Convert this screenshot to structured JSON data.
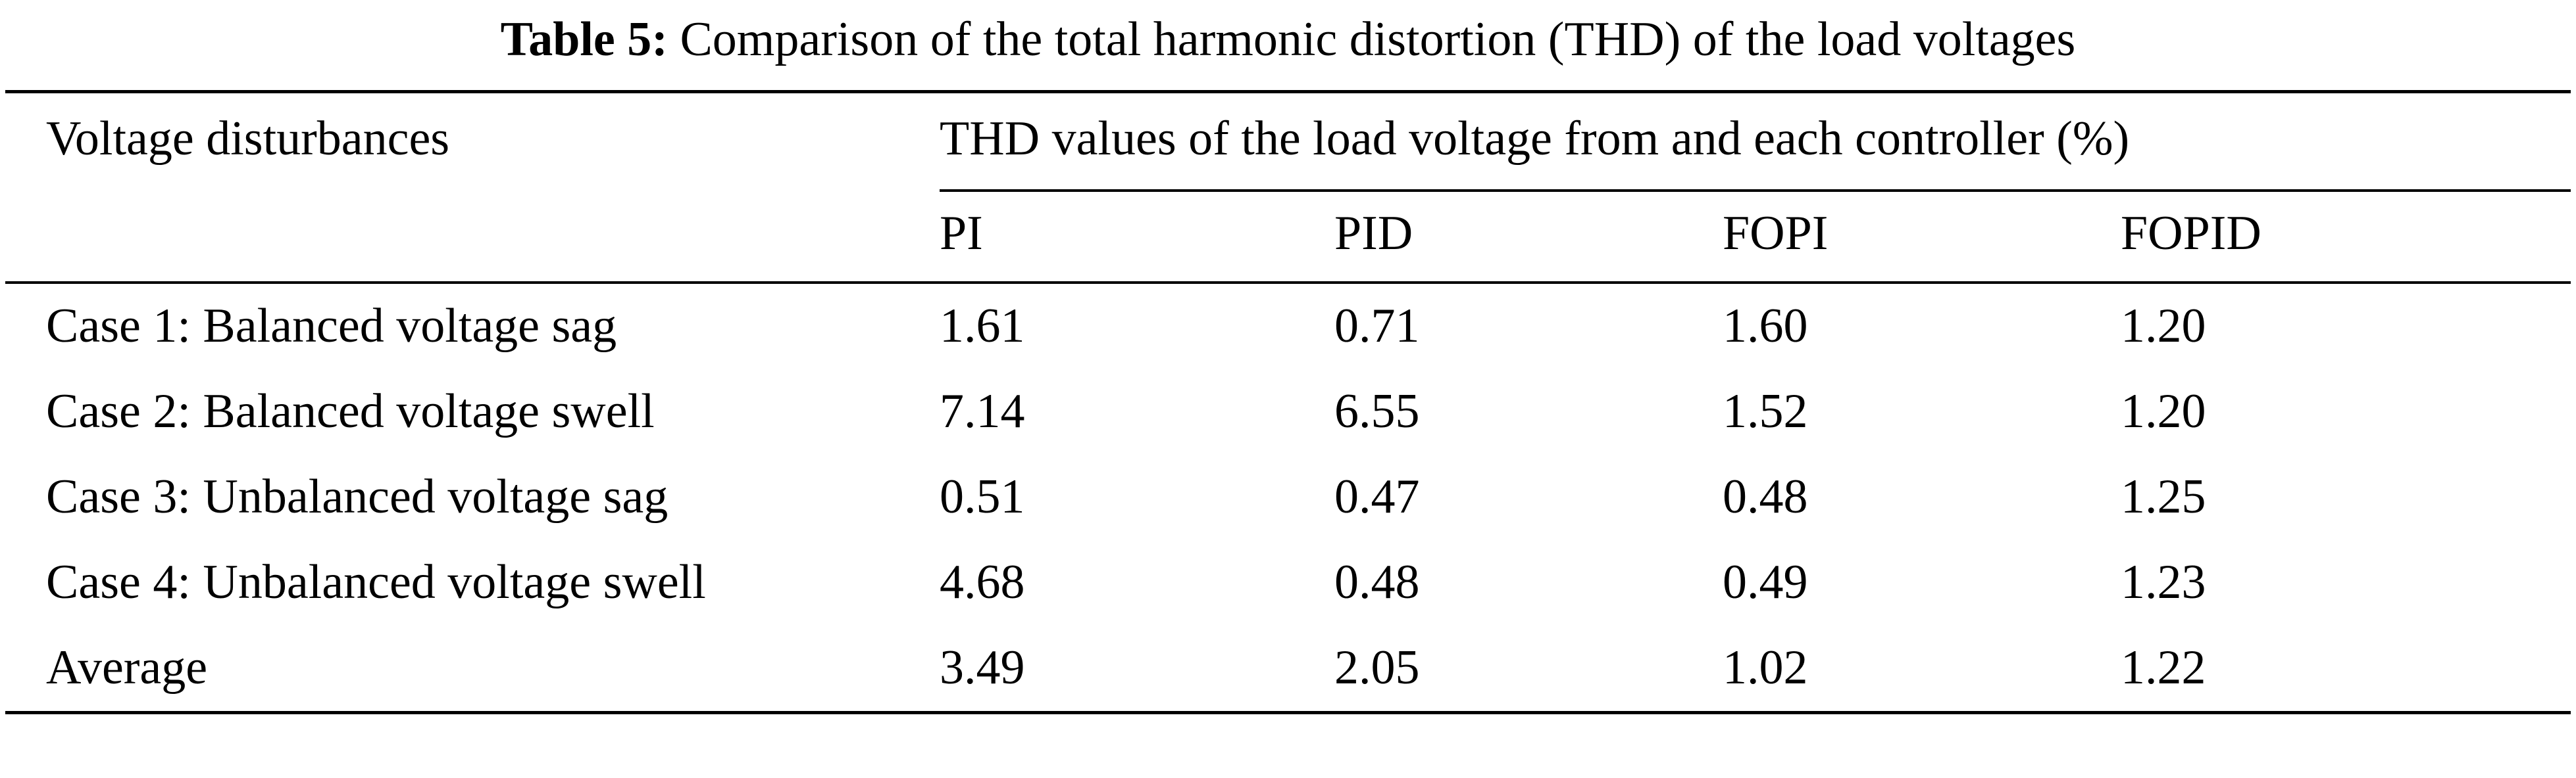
{
  "caption": {
    "label": "Table 5:",
    "text": "Comparison of the total harmonic distortion (THD) of the load voltages"
  },
  "table": {
    "col1_header": "Voltage disturbances",
    "span_header": "THD values of the load voltage from and each controller (%)",
    "columns": [
      "PI",
      "PID",
      "FOPI",
      "FOPID"
    ],
    "rows": [
      {
        "label": "Case 1: Balanced voltage sag",
        "values": [
          "1.61",
          "0.71",
          "1.60",
          "1.20"
        ]
      },
      {
        "label": "Case 2: Balanced voltage swell",
        "values": [
          "7.14",
          "6.55",
          "1.52",
          "1.20"
        ]
      },
      {
        "label": "Case 3: Unbalanced voltage sag",
        "values": [
          "0.51",
          "0.47",
          "0.48",
          "1.25"
        ]
      },
      {
        "label": "Case 4: Unbalanced voltage swell",
        "values": [
          "4.68",
          "0.48",
          "0.49",
          "1.23"
        ]
      },
      {
        "label": "Average",
        "values": [
          "3.49",
          "2.05",
          "1.02",
          "1.22"
        ]
      }
    ]
  },
  "chart_data": {
    "type": "table",
    "title": "Table 5: Comparison of the total harmonic distortion (THD) of the load voltages",
    "row_header": "Voltage disturbances",
    "group_header": "THD values of the load voltage from and each controller (%)",
    "columns": [
      "PI",
      "PID",
      "FOPI",
      "FOPID"
    ],
    "rows": [
      {
        "label": "Case 1: Balanced voltage sag",
        "values": [
          1.61,
          0.71,
          1.6,
          1.2
        ]
      },
      {
        "label": "Case 2: Balanced voltage swell",
        "values": [
          7.14,
          6.55,
          1.52,
          1.2
        ]
      },
      {
        "label": "Case 3: Unbalanced voltage sag",
        "values": [
          0.51,
          0.47,
          0.48,
          1.25
        ]
      },
      {
        "label": "Case 4: Unbalanced voltage swell",
        "values": [
          4.68,
          0.48,
          0.49,
          1.23
        ]
      },
      {
        "label": "Average",
        "values": [
          3.49,
          2.05,
          1.02,
          1.22
        ]
      }
    ]
  }
}
